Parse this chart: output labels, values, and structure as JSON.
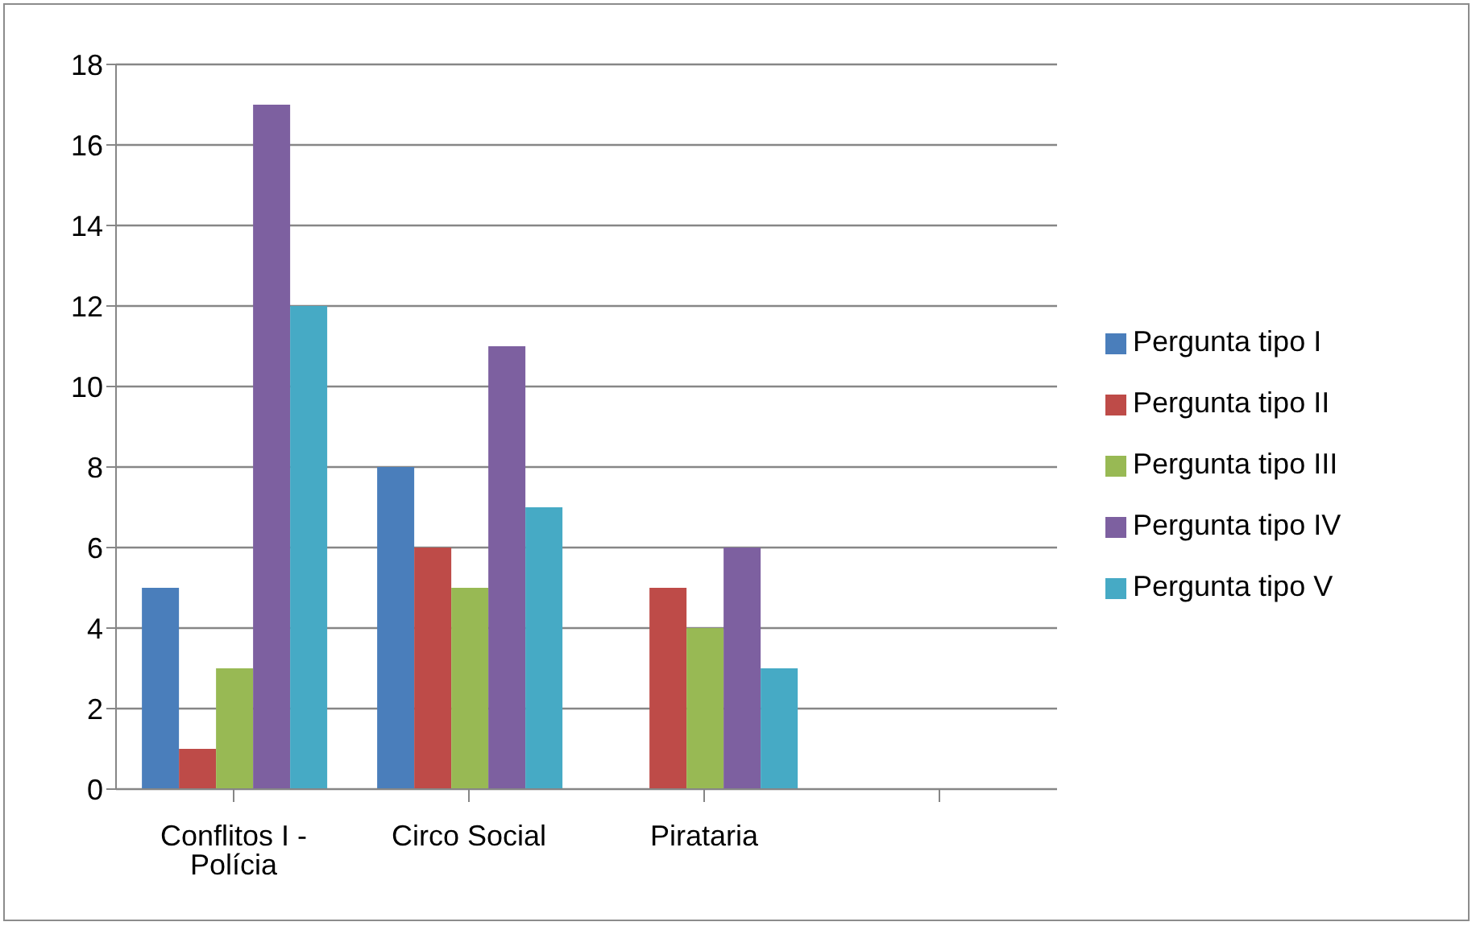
{
  "chart_data": {
    "type": "bar",
    "categories": [
      "Conflitos I - Polícia",
      "Circo Social",
      "Pirataria",
      null
    ],
    "series": [
      {
        "name": "Pergunta tipo I",
        "color": "#4a7ebb",
        "values": [
          5,
          8,
          0,
          null
        ]
      },
      {
        "name": "Pergunta tipo II",
        "color": "#be4b48",
        "values": [
          1,
          6,
          5,
          null
        ]
      },
      {
        "name": "Pergunta tipo III",
        "color": "#98b954",
        "values": [
          3,
          5,
          4,
          null
        ]
      },
      {
        "name": "Pergunta tipo IV",
        "color": "#7d60a0",
        "values": [
          17,
          11,
          6,
          null
        ]
      },
      {
        "name": "Pergunta tipo V",
        "color": "#46aac5",
        "values": [
          12,
          7,
          3,
          null
        ]
      }
    ],
    "ylim": [
      0,
      18
    ],
    "yticks": [
      0,
      2,
      4,
      6,
      8,
      10,
      12,
      14,
      16,
      18
    ],
    "grid": "y",
    "legend": "right"
  }
}
